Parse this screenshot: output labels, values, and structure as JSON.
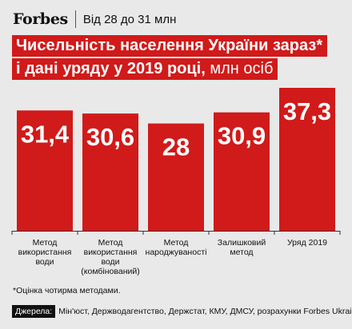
{
  "header": {
    "logo": "Forbes",
    "subtitle": "Від 28 до 31 млн"
  },
  "title": {
    "line1": "Чисельність населення України зараз*",
    "line2_main": "і дані уряду у 2019 році,",
    "line2_unit": " млн осіб"
  },
  "chart_data": {
    "type": "bar",
    "categories": [
      "Метод використання води",
      "Метод використання води (комбінований)",
      "Метод народжуваності",
      "Залишковий метод",
      "Уряд 2019"
    ],
    "category_lines": [
      [
        "Метод",
        "використання",
        "води"
      ],
      [
        "Метод",
        "використання",
        "води",
        "(комбінований)"
      ],
      [
        "Метод",
        "народжуваності"
      ],
      [
        "Залишковий",
        "метод"
      ],
      [
        "Уряд 2019"
      ]
    ],
    "values": [
      31.4,
      30.6,
      28,
      30.9,
      37.3
    ],
    "value_labels": [
      "31,4",
      "30,6",
      "28",
      "30,9",
      "37,3"
    ],
    "ylim": [
      0,
      37.3
    ],
    "bar_color": "#d11a1a",
    "grid": false
  },
  "footnote": "*Оцінка чотирма методами.",
  "sources": {
    "label": "Джерела:",
    "text": "Мін'юст, Держводагентство, Держстат, КМУ, ДМСУ, розрахунки Forbes Ukraine"
  },
  "colors": {
    "accent": "#d11a1a",
    "background": "#e9e9e9"
  }
}
